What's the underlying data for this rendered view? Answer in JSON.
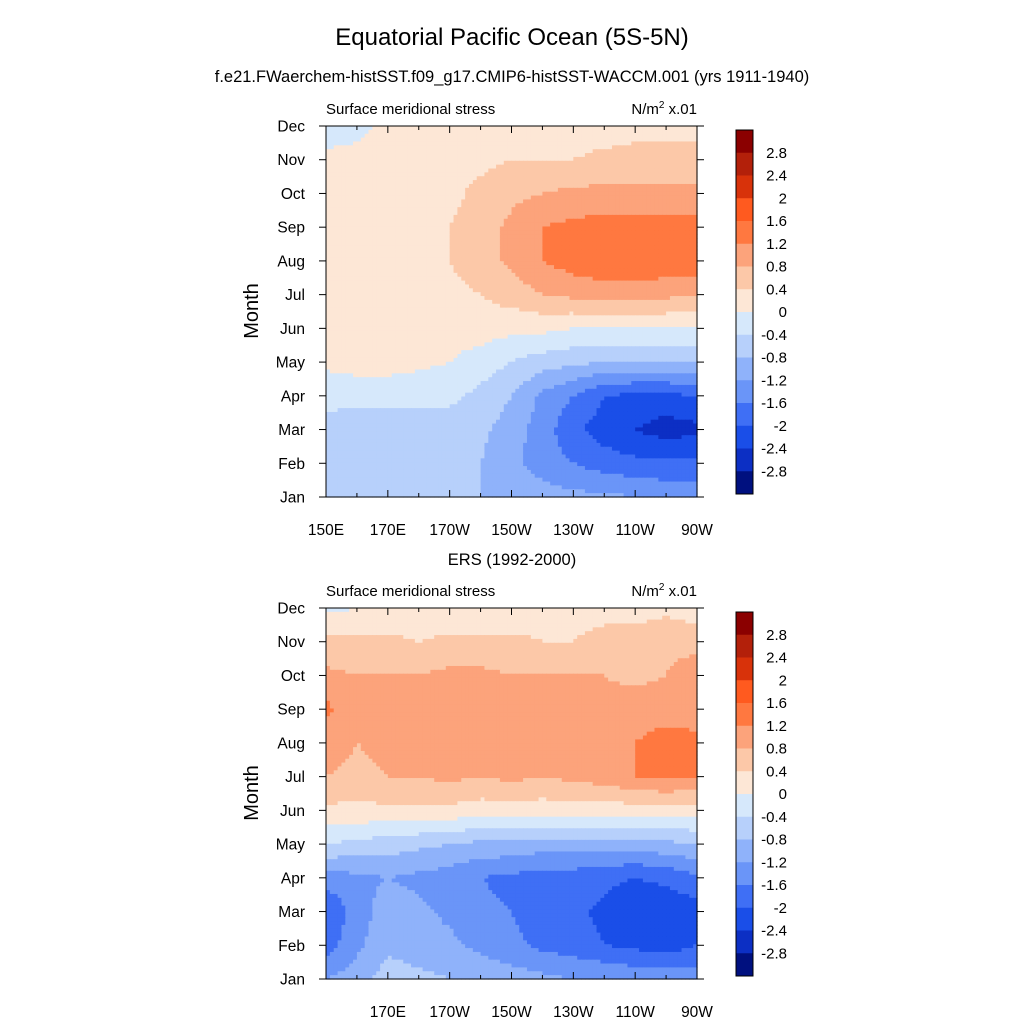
{
  "title": "Equatorial Pacific Ocean (5S-5N)",
  "subtitle": "f.e21.FWaerchem-histSST.f09_g17.CMIP6-histSST-WACCM.001 (yrs 1911-1940)",
  "colorbar": {
    "levels": [
      2.8,
      2.4,
      2,
      1.6,
      1.2,
      0.8,
      0.4,
      0,
      -0.4,
      -0.8,
      -1.2,
      -1.6,
      -2,
      -2.4,
      -2.8
    ],
    "colors_top_to_bottom": [
      "#8b0000",
      "#b3200a",
      "#d8320a",
      "#ff5a1f",
      "#ff7840",
      "#fca37b",
      "#fcc8a8",
      "#fde7d6",
      "#d6e8fb",
      "#b7d0fb",
      "#8fb2fa",
      "#6a95f8",
      "#3f6ff5",
      "#1a4ee8",
      "#0c2fc4",
      "#00107f"
    ]
  },
  "chart_data": [
    {
      "type": "heatmap",
      "panel_title": "",
      "left_label": "Surface meridional stress",
      "units": "N/m² x.01",
      "units_base": "N/m",
      "units_sup": "2",
      "units_tail": " x.01",
      "ylabel": "Month",
      "xlabel": "",
      "x": [
        "150E",
        "160E",
        "170E",
        "180",
        "170W",
        "160W",
        "150W",
        "140W",
        "130W",
        "120W",
        "110W",
        "100W",
        "90W"
      ],
      "x_tick_labels": [
        "150E",
        "170E",
        "170W",
        "150W",
        "130W",
        "110W",
        "90W"
      ],
      "y": [
        "Jan",
        "Feb",
        "Mar",
        "Apr",
        "May",
        "Jun",
        "Jul",
        "Aug",
        "Sep",
        "Oct",
        "Nov",
        "Dec"
      ],
      "values": [
        [
          -0.6,
          -0.7,
          -0.7,
          -0.7,
          -0.7,
          -0.8,
          -0.9,
          -1.0,
          -1.1,
          -1.1,
          -1.2,
          -1.3,
          -1.3
        ],
        [
          -0.6,
          -0.7,
          -0.7,
          -0.7,
          -0.7,
          -0.8,
          -1.1,
          -1.4,
          -1.6,
          -1.8,
          -1.9,
          -1.9,
          -1.9
        ],
        [
          -0.5,
          -0.6,
          -0.6,
          -0.6,
          -0.6,
          -0.7,
          -1.0,
          -1.4,
          -1.9,
          -2.2,
          -2.4,
          -2.6,
          -2.5
        ],
        [
          -0.3,
          -0.3,
          -0.3,
          -0.3,
          -0.3,
          -0.5,
          -0.8,
          -1.3,
          -1.6,
          -2.0,
          -2.1,
          -2.1,
          -2.0
        ],
        [
          0.1,
          0.2,
          0.2,
          0.1,
          0.0,
          -0.2,
          -0.4,
          -0.6,
          -0.7,
          -0.8,
          -0.8,
          -0.8,
          -0.8
        ],
        [
          0.2,
          0.2,
          0.2,
          0.2,
          0.2,
          0.2,
          0.1,
          0.1,
          0.0,
          0.0,
          0.0,
          0.0,
          0.0
        ],
        [
          0.3,
          0.3,
          0.3,
          0.3,
          0.3,
          0.4,
          0.6,
          0.8,
          0.9,
          1.0,
          1.0,
          0.9,
          0.8
        ],
        [
          0.3,
          0.3,
          0.3,
          0.3,
          0.4,
          0.6,
          0.9,
          1.2,
          1.4,
          1.5,
          1.5,
          1.5,
          1.5
        ],
        [
          0.2,
          0.3,
          0.3,
          0.3,
          0.4,
          0.6,
          0.9,
          1.2,
          1.3,
          1.4,
          1.4,
          1.4,
          1.4
        ],
        [
          0.2,
          0.2,
          0.2,
          0.2,
          0.3,
          0.5,
          0.7,
          0.8,
          0.9,
          0.9,
          0.9,
          0.9,
          0.9
        ],
        [
          0.1,
          0.1,
          0.2,
          0.2,
          0.3,
          0.3,
          0.4,
          0.4,
          0.4,
          0.5,
          0.5,
          0.5,
          0.5
        ],
        [
          -0.2,
          -0.1,
          0.1,
          0.2,
          0.2,
          0.2,
          0.2,
          0.2,
          0.2,
          0.2,
          0.3,
          0.3,
          0.3
        ]
      ]
    },
    {
      "type": "heatmap",
      "panel_title": "ERS (1992-2000)",
      "left_label": "Surface meridional stress",
      "units": "N/m² x.01",
      "units_base": "N/m",
      "units_sup": "2",
      "units_tail": " x.01",
      "ylabel": "Month",
      "xlabel": "",
      "x": [
        "150E",
        "160E",
        "170E",
        "180",
        "170W",
        "160W",
        "150W",
        "140W",
        "130W",
        "120W",
        "110W",
        "100W",
        "90W"
      ],
      "x_tick_labels": [
        "",
        "170E",
        "170W",
        "150W",
        "130W",
        "110W",
        "90W"
      ],
      "y": [
        "Jan",
        "Feb",
        "Mar",
        "Apr",
        "May",
        "Jun",
        "Jul",
        "Aug",
        "Sep",
        "Oct",
        "Nov",
        "Dec"
      ],
      "values": [
        [
          -1.2,
          -1.0,
          -0.6,
          -0.7,
          -0.8,
          -0.9,
          -1.0,
          -1.1,
          -1.2,
          -1.2,
          -1.3,
          -1.3,
          -1.4
        ],
        [
          -1.8,
          -1.3,
          -0.9,
          -1.0,
          -1.1,
          -1.3,
          -1.5,
          -1.7,
          -1.8,
          -2.0,
          -2.1,
          -2.2,
          -2.0
        ],
        [
          -2.0,
          -1.4,
          -1.0,
          -1.1,
          -1.3,
          -1.5,
          -1.6,
          -1.8,
          -1.9,
          -2.1,
          -2.4,
          -2.3,
          -2.2
        ],
        [
          -1.4,
          -1.3,
          -1.2,
          -1.3,
          -1.4,
          -1.6,
          -1.7,
          -1.8,
          -1.8,
          -1.9,
          -2.0,
          -1.9,
          -1.7
        ],
        [
          -0.4,
          -0.5,
          -0.6,
          -0.7,
          -0.8,
          -0.9,
          -0.9,
          -1.0,
          -1.0,
          -1.0,
          -1.0,
          -0.9,
          -0.8
        ],
        [
          0.3,
          0.3,
          0.3,
          0.3,
          0.3,
          0.2,
          0.2,
          0.2,
          0.2,
          0.2,
          0.2,
          0.2,
          0.2
        ],
        [
          0.8,
          0.7,
          0.8,
          0.8,
          0.9,
          0.8,
          0.9,
          0.8,
          0.9,
          1.0,
          1.2,
          1.3,
          1.2
        ],
        [
          1.0,
          0.8,
          0.9,
          0.9,
          1.0,
          0.9,
          0.9,
          0.9,
          0.9,
          1.0,
          1.2,
          1.4,
          1.3
        ],
        [
          1.3,
          0.9,
          0.8,
          0.9,
          1.0,
          0.9,
          0.9,
          0.9,
          0.9,
          0.9,
          1.0,
          1.0,
          1.0
        ],
        [
          0.9,
          0.8,
          0.8,
          0.8,
          0.9,
          0.9,
          0.8,
          0.8,
          0.8,
          0.8,
          0.7,
          0.8,
          1.1
        ],
        [
          0.5,
          0.5,
          0.5,
          0.4,
          0.5,
          0.5,
          0.5,
          0.4,
          0.4,
          0.6,
          0.6,
          0.7,
          0.6
        ],
        [
          -0.1,
          0.0,
          0.1,
          0.1,
          0.1,
          0.0,
          0.1,
          0.2,
          0.2,
          0.2,
          0.2,
          0.3,
          0.2
        ]
      ]
    }
  ]
}
